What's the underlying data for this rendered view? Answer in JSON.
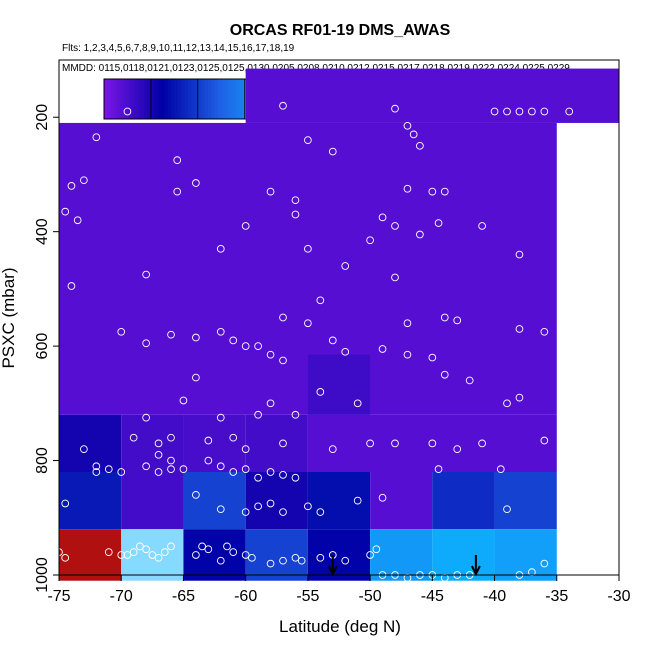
{
  "chart_data": {
    "type": "heatmap",
    "title": "ORCAS RF01-19 DMS_AWAS",
    "subtitle_flights": "Flts: 1,2,3,4,5,6,7,8,9,10,11,12,13,14,15,16,17,18,19",
    "subtitle_dates": "MMDD: 0115,0118,0121,0123,0125,0125,0130,0205,0208,0210,0212,0215,0217,0218,0219,0222,0224,0225,0229",
    "xlabel": "Latitude (deg N)",
    "ylabel": "PSXC (mbar)",
    "xlim": [
      -75,
      -30
    ],
    "ylim": [
      1000,
      100
    ],
    "x_ticks": [
      -75,
      -70,
      -65,
      -60,
      -55,
      -50,
      -45,
      -40,
      -35,
      -30
    ],
    "y_ticks": [
      200,
      400,
      600,
      800,
      1000
    ],
    "grid": false,
    "colorbar": {
      "vmin": 0,
      "vmax": 210,
      "ticks": [
        20,
        40,
        60,
        80,
        100,
        140,
        180
      ],
      "stops": [
        "#7b16e6",
        "#0000a6",
        "#1f62e6",
        "#0cb4ff",
        "#ffffff",
        "#ffee55",
        "#ff9a00",
        "#ee0000",
        "#8b1a1a"
      ],
      "segments": 10
    },
    "cells": [
      {
        "x0": -75,
        "x1": -35,
        "y0": 210,
        "y1": 720,
        "value": 8
      },
      {
        "x0": -60,
        "x1": -30,
        "y0": 115,
        "y1": 210,
        "value": 8
      },
      {
        "x0": -75,
        "x1": -60,
        "y0": 210,
        "y1": 210,
        "value": 8
      },
      {
        "x0": -75,
        "x1": -70,
        "y0": 720,
        "y1": 820,
        "value": 22
      },
      {
        "x0": -70,
        "x1": -65,
        "y0": 720,
        "y1": 820,
        "value": 12
      },
      {
        "x0": -65,
        "x1": -60,
        "y0": 720,
        "y1": 820,
        "value": 11
      },
      {
        "x0": -60,
        "x1": -55,
        "y0": 720,
        "y1": 820,
        "value": 12
      },
      {
        "x0": -55,
        "x1": -35,
        "y0": 720,
        "y1": 820,
        "value": 8
      },
      {
        "x0": -55,
        "x1": -50,
        "y0": 615,
        "y1": 720,
        "value": 13
      },
      {
        "x0": -75,
        "x1": -70,
        "y0": 820,
        "y1": 920,
        "value": 33
      },
      {
        "x0": -70,
        "x1": -65,
        "y0": 820,
        "y1": 920,
        "value": 12
      },
      {
        "x0": -65,
        "x1": -60,
        "y0": 820,
        "y1": 920,
        "value": 44
      },
      {
        "x0": -60,
        "x1": -55,
        "y0": 820,
        "y1": 920,
        "value": 22
      },
      {
        "x0": -55,
        "x1": -50,
        "y0": 820,
        "y1": 920,
        "value": 30
      },
      {
        "x0": -50,
        "x1": -45,
        "y0": 820,
        "y1": 920,
        "value": 8
      },
      {
        "x0": -45,
        "x1": -40,
        "y0": 820,
        "y1": 920,
        "value": 38
      },
      {
        "x0": -40,
        "x1": -35,
        "y0": 820,
        "y1": 920,
        "value": 44
      },
      {
        "x0": -75,
        "x1": -70,
        "y0": 920,
        "y1": 1010,
        "value": 200
      },
      {
        "x0": -70,
        "x1": -65,
        "y0": 920,
        "y1": 1010,
        "value": 92
      },
      {
        "x0": -65,
        "x1": -60,
        "y0": 920,
        "y1": 1010,
        "value": 27
      },
      {
        "x0": -60,
        "x1": -55,
        "y0": 920,
        "y1": 1010,
        "value": 44
      },
      {
        "x0": -55,
        "x1": -50,
        "y0": 920,
        "y1": 1010,
        "value": 27
      },
      {
        "x0": -50,
        "x1": -45,
        "y0": 920,
        "y1": 1010,
        "value": 70
      },
      {
        "x0": -45,
        "x1": -40,
        "y0": 920,
        "y1": 1010,
        "value": 76
      },
      {
        "x0": -40,
        "x1": -35,
        "y0": 920,
        "y1": 1010,
        "value": 72
      }
    ],
    "samples": [
      [
        -69.5,
        190
      ],
      [
        -57,
        180
      ],
      [
        -48,
        185
      ],
      [
        -47,
        215
      ],
      [
        -46.5,
        230
      ],
      [
        -46,
        250
      ],
      [
        -38,
        190
      ],
      [
        -37,
        190
      ],
      [
        -36,
        190
      ],
      [
        -34,
        190
      ],
      [
        -39,
        190
      ],
      [
        -40,
        190
      ],
      [
        -72,
        235
      ],
      [
        -74,
        320
      ],
      [
        -73,
        310
      ],
      [
        -74.5,
        365
      ],
      [
        -73.5,
        380
      ],
      [
        -65.5,
        275
      ],
      [
        -65.5,
        330
      ],
      [
        -64,
        315
      ],
      [
        -58,
        330
      ],
      [
        -56,
        345
      ],
      [
        -56,
        370
      ],
      [
        -53,
        260
      ],
      [
        -55,
        240
      ],
      [
        -62,
        430
      ],
      [
        -60,
        390
      ],
      [
        -48,
        390
      ],
      [
        -45,
        330
      ],
      [
        -44,
        330
      ],
      [
        -44.5,
        385
      ],
      [
        -49,
        375
      ],
      [
        -47,
        325
      ],
      [
        -41,
        390
      ],
      [
        -38,
        440
      ],
      [
        -74,
        495
      ],
      [
        -68,
        475
      ],
      [
        -48,
        480
      ],
      [
        -46,
        405
      ],
      [
        -50,
        415
      ],
      [
        -52,
        460
      ],
      [
        -55,
        430
      ],
      [
        -54,
        520
      ],
      [
        -57,
        550
      ],
      [
        -55,
        560
      ],
      [
        -53,
        590
      ],
      [
        -70,
        575
      ],
      [
        -68,
        595
      ],
      [
        -66,
        580
      ],
      [
        -64,
        585
      ],
      [
        -62,
        575
      ],
      [
        -61,
        590
      ],
      [
        -58,
        615
      ],
      [
        -59,
        600
      ],
      [
        -47,
        560
      ],
      [
        -44,
        550
      ],
      [
        -43,
        555
      ],
      [
        -38,
        570
      ],
      [
        -36,
        575
      ],
      [
        -60,
        600
      ],
      [
        -57,
        625
      ],
      [
        -49,
        605
      ],
      [
        -47,
        615
      ],
      [
        -45,
        620
      ],
      [
        -44,
        650
      ],
      [
        -42,
        660
      ],
      [
        -38,
        690
      ],
      [
        -36,
        765
      ],
      [
        -73,
        780
      ],
      [
        -69,
        760
      ],
      [
        -67,
        770
      ],
      [
        -65,
        695
      ],
      [
        -64,
        655
      ],
      [
        -62,
        725
      ],
      [
        -59,
        720
      ],
      [
        -58,
        700
      ],
      [
        -56,
        720
      ],
      [
        -54,
        680
      ],
      [
        -52,
        610
      ],
      [
        -68,
        725
      ],
      [
        -66,
        760
      ],
      [
        -63,
        765
      ],
      [
        -61,
        760
      ],
      [
        -60,
        780
      ],
      [
        -57,
        770
      ],
      [
        -53,
        780
      ],
      [
        -51,
        700
      ],
      [
        -50,
        770
      ],
      [
        -48,
        770
      ],
      [
        -45,
        770
      ],
      [
        -43,
        780
      ],
      [
        -41,
        770
      ],
      [
        -39,
        700
      ],
      [
        -72,
        820
      ],
      [
        -71,
        815
      ],
      [
        -70,
        820
      ],
      [
        -68,
        810
      ],
      [
        -67,
        820
      ],
      [
        -66,
        815
      ],
      [
        -65,
        815
      ],
      [
        -63,
        800
      ],
      [
        -62,
        810
      ],
      [
        -61,
        820
      ],
      [
        -60,
        815
      ],
      [
        -59,
        830
      ],
      [
        -58,
        820
      ],
      [
        -57,
        825
      ],
      [
        -56,
        830
      ],
      [
        -74.5,
        875
      ],
      [
        -72,
        810
      ],
      [
        -67,
        790
      ],
      [
        -66,
        800
      ],
      [
        -64,
        860
      ],
      [
        -62,
        885
      ],
      [
        -60,
        890
      ],
      [
        -59,
        880
      ],
      [
        -58,
        875
      ],
      [
        -57,
        890
      ],
      [
        -55,
        880
      ],
      [
        -54,
        890
      ],
      [
        -51,
        870
      ],
      [
        -49,
        865
      ],
      [
        -44.5,
        815
      ],
      [
        -39.5,
        815
      ],
      [
        -39,
        885
      ],
      [
        -75,
        960
      ],
      [
        -74.5,
        970
      ],
      [
        -71,
        960
      ],
      [
        -70,
        965
      ],
      [
        -69,
        960
      ],
      [
        -68,
        955
      ],
      [
        -67.5,
        965
      ],
      [
        -67,
        970
      ],
      [
        -66.5,
        960
      ],
      [
        -66,
        950
      ],
      [
        -68.5,
        950
      ],
      [
        -69.5,
        965
      ],
      [
        -64,
        965
      ],
      [
        -63.5,
        950
      ],
      [
        -63,
        955
      ],
      [
        -62,
        975
      ],
      [
        -61.5,
        950
      ],
      [
        -61,
        960
      ],
      [
        -60,
        965
      ],
      [
        -59.5,
        970
      ],
      [
        -58,
        980
      ],
      [
        -57,
        975
      ],
      [
        -56,
        970
      ],
      [
        -55.5,
        975
      ],
      [
        -54,
        970
      ],
      [
        -53,
        965
      ],
      [
        -52,
        975
      ],
      [
        -50,
        965
      ],
      [
        -49.5,
        955
      ],
      [
        -49,
        1000
      ],
      [
        -48,
        1000
      ],
      [
        -47,
        1005
      ],
      [
        -46,
        1000
      ],
      [
        -45,
        1000
      ],
      [
        -44,
        1005
      ],
      [
        -43,
        1000
      ],
      [
        -42,
        1000
      ],
      [
        -38,
        1000
      ],
      [
        -37,
        995
      ],
      [
        -36,
        980
      ]
    ],
    "arrows": [
      -53,
      -41.5
    ]
  }
}
